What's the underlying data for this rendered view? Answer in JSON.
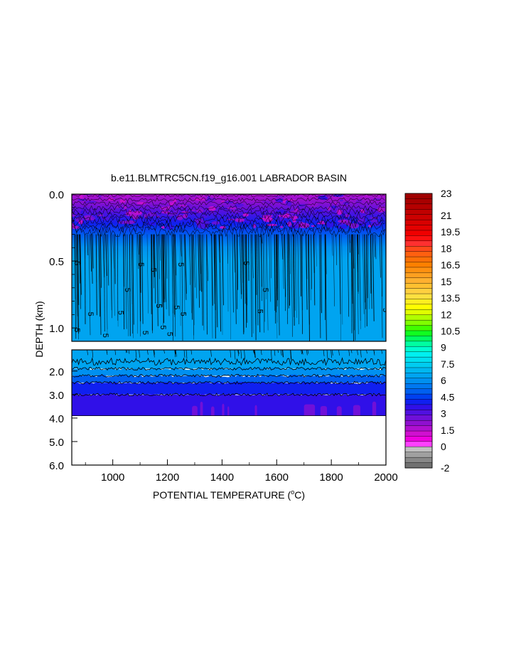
{
  "chart_data": {
    "type": "heatmap",
    "title": "b.e11.BLMTRC5CN.f19_g16.001 LABRADOR BASIN",
    "xlabel": "POTENTIAL TEMPERATURE (",
    "xlabel_sup": "o",
    "xlabel_end": "C)",
    "ylabel": "DEPTH (km)",
    "xlim": [
      850,
      2000
    ],
    "upper_panel": {
      "ylim": [
        0.0,
        1.1
      ],
      "y_ticks": [
        "0.0",
        "0.5",
        "1.0"
      ],
      "y_tick_values": [
        0.0,
        0.5,
        1.0
      ]
    },
    "lower_panel": {
      "ylim": [
        1.1,
        6.0
      ],
      "y_ticks": [
        "2.0",
        "3.0",
        "4.0",
        "5.0",
        "6.0"
      ],
      "y_tick_values": [
        2.0,
        3.0,
        4.0,
        5.0,
        6.0
      ],
      "bottom_of_data_km": 3.9
    },
    "x_ticks": [
      "1000",
      "1200",
      "1400",
      "1600",
      "1800",
      "2000"
    ],
    "x_tick_values": [
      1000,
      1200,
      1400,
      1600,
      1800,
      2000
    ],
    "contour_label": "5",
    "field_summary": [
      {
        "depth_range_km": [
          0.0,
          0.08
        ],
        "value": 1.0
      },
      {
        "depth_range_km": [
          0.08,
          0.2
        ],
        "value": 3.0
      },
      {
        "depth_range_km": [
          0.2,
          0.4
        ],
        "value": 4.0
      },
      {
        "depth_range_km": [
          0.4,
          1.1
        ],
        "value": 4.8
      },
      {
        "depth_range_km": [
          1.1,
          2.0
        ],
        "value": 4.6
      },
      {
        "depth_range_km": [
          2.0,
          3.0
        ],
        "value": 3.8
      },
      {
        "depth_range_km": [
          3.0,
          3.9
        ],
        "value": 3.0
      }
    ],
    "colorbar": {
      "labels": [
        "23",
        "21",
        "19.5",
        "18",
        "16.5",
        "15",
        "13.5",
        "12",
        "10.5",
        "9",
        "7.5",
        "6",
        "4.5",
        "3",
        "1.5",
        "0",
        "-2"
      ],
      "label_values": [
        23,
        21,
        19.5,
        18,
        16.5,
        15,
        13.5,
        12,
        10.5,
        9,
        7.5,
        6,
        4.5,
        3,
        1.5,
        0,
        -2
      ],
      "colors_top_to_bottom": [
        "#a00000",
        "#a80000",
        "#b40000",
        "#c00000",
        "#cc0000",
        "#d80000",
        "#e40000",
        "#f00000",
        "#ff1010",
        "#ff3030",
        "#ff4a1a",
        "#ff6010",
        "#ff7008",
        "#ff8000",
        "#ff9010",
        "#ffa020",
        "#ffb030",
        "#ffc030",
        "#ffd040",
        "#ffe040",
        "#ffee20",
        "#ffff00",
        "#e0ff00",
        "#b0ff00",
        "#80ff00",
        "#40ff00",
        "#10ff20",
        "#00ff60",
        "#00ffa0",
        "#00ffd0",
        "#00f0f0",
        "#00e0f0",
        "#00ccf0",
        "#00b8f0",
        "#00a4f0",
        "#0090f0",
        "#0078f0",
        "#0060f0",
        "#0040f0",
        "#1020f0",
        "#3010e8",
        "#5010e0",
        "#7010d8",
        "#9010d0",
        "#b010d0",
        "#d010d0",
        "#f000e0",
        "#ff40ff",
        "#c0c0c0",
        "#a0a0a0",
        "#888888",
        "#707070"
      ]
    }
  }
}
